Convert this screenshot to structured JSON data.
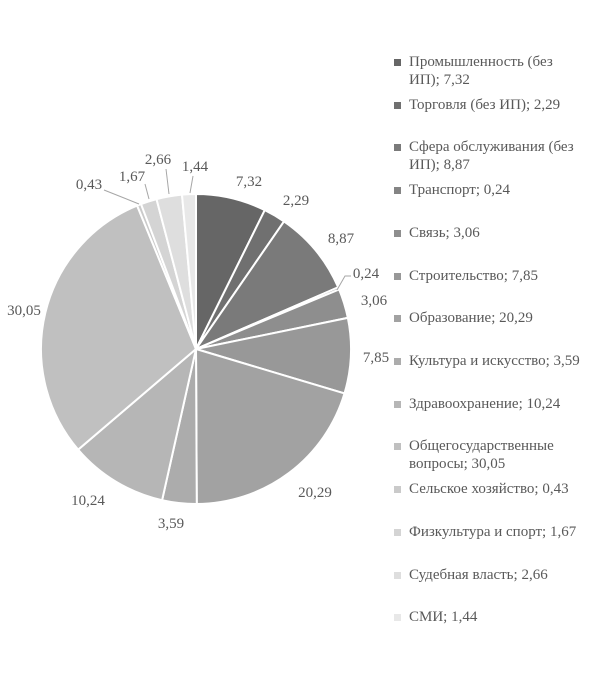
{
  "chart_data": {
    "type": "pie",
    "title": "",
    "legend_position": "right",
    "start_angle_deg": 0,
    "direction": "clockwise",
    "decimal_separator": ",",
    "background_color": "#ffffff",
    "slice_border_color": "#ffffff",
    "text_color": "#595959",
    "leader_line_color": "#a6a6a6",
    "categories": [
      "Промышленность (без ИП)",
      "Торговля (без ИП)",
      "Сфера обслуживания (без ИП)",
      "Транспорт",
      "Связь",
      "Строительство",
      "Образование",
      "Культура и искусство",
      "Здравоохранение",
      "Общегосударственные вопросы",
      "Сельское хозяйство",
      "Физкультура и спорт",
      "Судебная власть",
      "СМИ"
    ],
    "values": [
      7.32,
      2.29,
      8.87,
      0.24,
      3.06,
      7.85,
      20.29,
      3.59,
      10.24,
      30.05,
      0.43,
      1.67,
      2.66,
      1.44
    ],
    "labels_formatted": [
      "7,32",
      "2,29",
      "8,87",
      "0,24",
      "3,06",
      "7,85",
      "20,29",
      "3,59",
      "10,24",
      "30,05",
      "0,43",
      "1,67",
      "2,66",
      "1,44"
    ],
    "legend_labels": [
      "Промышленность (без\nИП); 7,32",
      "Торговля (без ИП); 2,29",
      "Сфера обслуживания (без\nИП); 8,87",
      "Транспорт; 0,24",
      "Связь; 3,06",
      "Строительство; 7,85",
      "Образование; 20,29",
      "Культура и искусство; 3,59",
      "Здравоохранение; 10,24",
      "Общегосударственные\nвопросы; 30,05",
      "Сельское хозяйство; 0,43",
      "Физкультура и спорт; 1,67",
      "Судебная власть; 2,66",
      "СМИ; 1,44"
    ],
    "colors": [
      "#666666",
      "#707070",
      "#7a7a7a",
      "#848484",
      "#8e8e8e",
      "#989898",
      "#a2a2a2",
      "#acacac",
      "#b6b6b6",
      "#c0c0c0",
      "#cacaca",
      "#d4d4d4",
      "#dedede",
      "#e8e8e8"
    ]
  }
}
